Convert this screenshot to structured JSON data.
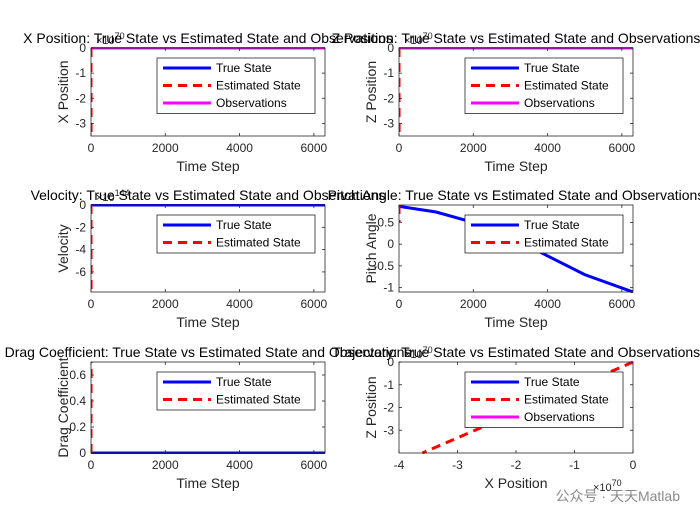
{
  "colors": {
    "true_state": "#0000FF",
    "estimated_state": "#FF0000",
    "observations": "#FF00FF",
    "axis": "#262626"
  },
  "watermark": "公众号 · 天天Matlab",
  "chart_data": [
    {
      "type": "line",
      "title": "X Position: True State vs Estimated State and Observations",
      "xlabel": "Time Step",
      "ylabel": "X Position",
      "xlim": [
        0,
        6300
      ],
      "ylim": [
        -3.5,
        0
      ],
      "xticks": [
        0,
        2000,
        4000,
        6000
      ],
      "yticks": [
        -3,
        -2,
        -1,
        0
      ],
      "y_exponent": "×10^70",
      "legend": "top-right",
      "series": [
        {
          "name": "True State",
          "style": "solid",
          "color": "#0000FF",
          "x": [
            0,
            6300
          ],
          "y": [
            0,
            0
          ]
        },
        {
          "name": "Estimated State",
          "style": "dashed",
          "color": "#FF0000",
          "x": [
            0,
            1,
            2
          ],
          "y": [
            0,
            -1.5,
            -3.5
          ]
        },
        {
          "name": "Observations",
          "style": "solid",
          "color": "#FF00FF",
          "x": [
            0,
            6300
          ],
          "y": [
            0,
            0
          ]
        }
      ]
    },
    {
      "type": "line",
      "title": "Z Position: True State vs Estimated State and Observations",
      "xlabel": "Time Step",
      "ylabel": "Z Position",
      "xlim": [
        0,
        6300
      ],
      "ylim": [
        -3.5,
        0
      ],
      "xticks": [
        0,
        2000,
        4000,
        6000
      ],
      "yticks": [
        -3,
        -2,
        -1,
        0
      ],
      "y_exponent": "×10^70",
      "legend": "top-right",
      "series": [
        {
          "name": "True State",
          "style": "solid",
          "color": "#0000FF",
          "x": [
            0,
            6300
          ],
          "y": [
            0,
            0
          ]
        },
        {
          "name": "Estimated State",
          "style": "dashed",
          "color": "#FF0000",
          "x": [
            0,
            1,
            2
          ],
          "y": [
            0,
            -1.5,
            -3.5
          ]
        },
        {
          "name": "Observations",
          "style": "solid",
          "color": "#FF00FF",
          "x": [
            0,
            6300
          ],
          "y": [
            0,
            0
          ]
        }
      ]
    },
    {
      "type": "line",
      "title": "Velocity: True State vs Estimated State and Observations",
      "xlabel": "Time Step",
      "ylabel": "Velocity",
      "xlim": [
        0,
        6300
      ],
      "ylim": [
        -7.8,
        0
      ],
      "xticks": [
        0,
        2000,
        4000,
        6000
      ],
      "yticks": [
        -6,
        -4,
        -2,
        0
      ],
      "y_exponent": "×10^144",
      "legend": "top-right",
      "series": [
        {
          "name": "True State",
          "style": "solid",
          "color": "#0000FF",
          "x": [
            0,
            6300
          ],
          "y": [
            0,
            0
          ]
        },
        {
          "name": "Estimated State",
          "style": "dashed",
          "color": "#FF0000",
          "x": [
            0,
            1,
            2
          ],
          "y": [
            0,
            -3,
            -7.8
          ]
        }
      ]
    },
    {
      "type": "line",
      "title": "Pitch Angle: True State vs Estimated State and Observations",
      "xlabel": "Time Step",
      "ylabel": "Pitch Angle",
      "xlim": [
        0,
        6300
      ],
      "ylim": [
        -1.1,
        0.9
      ],
      "xticks": [
        0,
        2000,
        4000,
        6000
      ],
      "yticks": [
        -1,
        -0.5,
        0,
        0.5
      ],
      "legend": "top-right",
      "series": [
        {
          "name": "True State",
          "style": "solid",
          "color": "#0000FF",
          "x": [
            0,
            1000,
            2000,
            3000,
            4000,
            5000,
            6300
          ],
          "y": [
            0.87,
            0.74,
            0.5,
            0.17,
            -0.27,
            -0.7,
            -1.1
          ]
        },
        {
          "name": "Estimated State",
          "style": "dashed",
          "color": "#FF0000",
          "x": [
            0,
            1,
            2
          ],
          "y": [
            0.9,
            0.7,
            0.5
          ]
        }
      ]
    },
    {
      "type": "line",
      "title": "Drag Coefficient: True State vs Estimated State and Observations",
      "xlabel": "Time Step",
      "ylabel": "Drag Coefficient",
      "xlim": [
        0,
        6300
      ],
      "ylim": [
        0,
        0.7
      ],
      "xticks": [
        0,
        2000,
        4000,
        6000
      ],
      "yticks": [
        0,
        0.2,
        0.4,
        0.6
      ],
      "legend": "top-right",
      "series": [
        {
          "name": "True State",
          "style": "solid",
          "color": "#0000FF",
          "x": [
            0,
            6300
          ],
          "y": [
            0,
            0
          ]
        },
        {
          "name": "Estimated State",
          "style": "dashed",
          "color": "#FF0000",
          "x": [
            0,
            1,
            2
          ],
          "y": [
            0,
            0.35,
            0.7
          ]
        }
      ]
    },
    {
      "type": "line",
      "title": "Trajectory: True State vs Estimated State and Observations",
      "xlabel": "X Position",
      "ylabel": "Z Position",
      "xlim": [
        -4,
        0
      ],
      "ylim": [
        -4,
        0
      ],
      "xticks": [
        -4,
        -3,
        -2,
        -1,
        0
      ],
      "yticks": [
        -3,
        -2,
        -1,
        0
      ],
      "x_exponent": "×10^70",
      "y_exponent": "×10^70",
      "legend": "top-right",
      "series": [
        {
          "name": "True State",
          "style": "solid",
          "color": "#0000FF",
          "x": [
            0
          ],
          "y": [
            0
          ]
        },
        {
          "name": "Estimated State",
          "style": "dashed",
          "color": "#FF0000",
          "x": [
            0,
            -3.6
          ],
          "y": [
            0,
            -4
          ]
        },
        {
          "name": "Observations",
          "style": "solid",
          "color": "#FF00FF",
          "x": [
            0
          ],
          "y": [
            0
          ]
        }
      ]
    }
  ]
}
